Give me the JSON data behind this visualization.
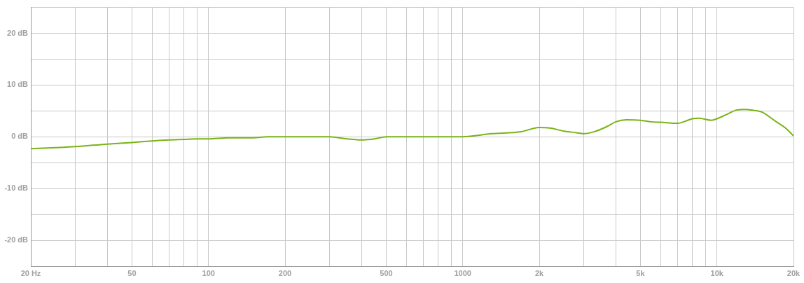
{
  "chart_data": {
    "type": "line",
    "log": "x",
    "grid": true,
    "legend": false,
    "marker": "none",
    "line_style": "solid",
    "xlim": [
      20,
      20000
    ],
    "xticks": [
      {
        "value": 20,
        "label": "20 Hz"
      },
      {
        "value": 30,
        "label": null
      },
      {
        "value": 40,
        "label": null
      },
      50,
      {
        "value": 60,
        "label": null
      },
      {
        "value": 70,
        "label": null
      },
      {
        "value": 80,
        "label": null
      },
      {
        "value": 90,
        "label": null
      },
      100,
      200,
      {
        "value": 300,
        "label": null
      },
      {
        "value": 400,
        "label": null
      },
      500,
      {
        "value": 600,
        "label": null
      },
      {
        "value": 700,
        "label": null
      },
      {
        "value": 800,
        "label": null
      },
      {
        "value": 900,
        "label": null
      },
      1000,
      {
        "value": 2000,
        "label": "2k"
      },
      {
        "value": 3000,
        "label": null
      },
      {
        "value": 4000,
        "label": null
      },
      {
        "value": 5000,
        "label": "5k"
      },
      {
        "value": 6000,
        "label": null
      },
      {
        "value": 7000,
        "label": null
      },
      {
        "value": 8000,
        "label": null
      },
      {
        "value": 9000,
        "label": null
      },
      {
        "value": 10000,
        "label": "10k"
      },
      {
        "value": 20000,
        "label": "20k"
      }
    ],
    "ylim": [
      -25,
      25
    ],
    "yticks": [
      {
        "value": -25,
        "label": null
      },
      {
        "value": -20,
        "label": "-20 dB"
      },
      {
        "value": -15,
        "label": null
      },
      {
        "value": -10,
        "label": "-10 dB"
      },
      {
        "value": -5,
        "label": null
      },
      {
        "value": 0,
        "label": "0 dB"
      },
      {
        "value": 5,
        "label": null
      },
      {
        "value": 10,
        "label": "10 dB"
      },
      {
        "value": 15,
        "label": null
      },
      {
        "value": 20,
        "label": "20 dB"
      },
      {
        "value": 25,
        "label": null
      }
    ],
    "x": [
      20,
      25,
      30,
      40,
      50,
      60,
      70,
      80,
      90,
      100,
      120,
      150,
      170,
      200,
      300,
      350,
      400,
      450,
      500,
      700,
      1000,
      1300,
      1700,
      2000,
      2200,
      2500,
      2800,
      3000,
      3300,
      3700,
      4000,
      4400,
      5000,
      5500,
      6000,
      7000,
      7500,
      8000,
      8500,
      9500,
      10000,
      11000,
      12000,
      12800,
      14000,
      15000,
      17000,
      18500,
      20000
    ],
    "series": [
      {
        "color": "#7ab317",
        "values": [
          -2.3,
          -2.1,
          -1.9,
          -1.4,
          -1.1,
          -0.8,
          -0.6,
          -0.5,
          -0.4,
          -0.4,
          -0.2,
          -0.2,
          0,
          0,
          0,
          -0.4,
          -0.6,
          -0.4,
          0,
          0,
          0,
          0.6,
          1.0,
          1.8,
          1.7,
          1.1,
          0.8,
          0.6,
          1.0,
          2.0,
          2.9,
          3.3,
          3.2,
          2.9,
          2.8,
          2.6,
          3.0,
          3.5,
          3.6,
          3.2,
          3.5,
          4.4,
          5.2,
          5.3,
          5.1,
          4.8,
          3.0,
          1.8,
          0.2
        ]
      }
    ]
  }
}
